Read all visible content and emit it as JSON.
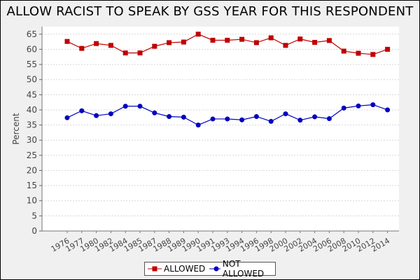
{
  "chart_data": {
    "type": "line",
    "title": "ALLOW RACIST TO SPEAK BY GSS YEAR FOR THIS RESPONDENT",
    "xlabel": "",
    "ylabel": "Percent",
    "ylim": [
      0,
      67.5
    ],
    "yticks": [
      0,
      5,
      10,
      15,
      20,
      25,
      30,
      35,
      40,
      45,
      50,
      55,
      60,
      65
    ],
    "categories": [
      "1976",
      "1977",
      "1980",
      "1982",
      "1984",
      "1985",
      "1987",
      "1988",
      "1989",
      "1990",
      "1991",
      "1993",
      "1994",
      "1996",
      "1998",
      "2000",
      "2002",
      "2004",
      "2006",
      "2008",
      "2010",
      "2012",
      "2014"
    ],
    "series": [
      {
        "name": "ALLOWED",
        "color": "#c00000",
        "marker": "square",
        "values": [
          62.6,
          60.3,
          61.9,
          61.3,
          58.8,
          58.8,
          61.0,
          62.2,
          62.4,
          65.0,
          63.0,
          63.0,
          63.3,
          62.2,
          63.8,
          61.3,
          63.4,
          62.3,
          62.9,
          59.4,
          58.7,
          58.3,
          60.0
        ]
      },
      {
        "name": "NOT ALLOWED",
        "color": "#0000c0",
        "marker": "circle",
        "values": [
          37.4,
          39.7,
          38.1,
          38.7,
          41.2,
          41.2,
          39.0,
          37.8,
          37.6,
          35.0,
          37.0,
          37.0,
          36.7,
          37.8,
          36.2,
          38.7,
          36.6,
          37.7,
          37.1,
          40.6,
          41.3,
          41.7,
          40.0
        ]
      }
    ],
    "grid": true,
    "legend_position": "bottom"
  }
}
